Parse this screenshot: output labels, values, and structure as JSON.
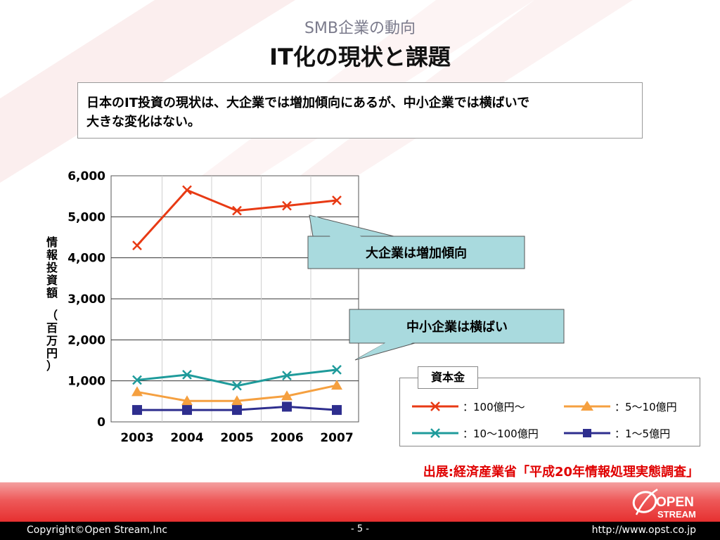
{
  "slide": {
    "subtitle": "SMB企業の動向",
    "title": "IT化の現状と課題",
    "summary_line1": "日本のIT投資の現状は、大企業では増加傾向にあるが、中小企業では横ばいで",
    "summary_line2": "大きな変化はない。",
    "source": "出展:経済産業省「平成20年情報処理実態調査」",
    "callout_large": "大企業は増加傾向",
    "callout_sme": "中小企業は横ばい",
    "legend_title": "資本金",
    "logo_text_top": "OPEN",
    "logo_text_bottom": "STREAM"
  },
  "footer": {
    "copyright": "Copyright©Open Stream,Inc",
    "page": "- 5 -",
    "url": "http://www.opst.co.jp"
  },
  "colors": {
    "accent_red": "#e00000",
    "callout_fill": "#a9dade"
  },
  "chart_data": {
    "type": "line",
    "categories": [
      "2003",
      "2004",
      "2005",
      "2006",
      "2007"
    ],
    "ylabel": "情報投資額（百万円）",
    "ylim": [
      0,
      6000
    ],
    "yticks": [
      0,
      1000,
      2000,
      3000,
      4000,
      5000,
      6000
    ],
    "ytick_labels": [
      "0",
      "1,000",
      "2,000",
      "3,000",
      "4,000",
      "5,000",
      "6,000"
    ],
    "grid": "horizontal",
    "legend": "bottom-right",
    "series": [
      {
        "name": "：100億円〜",
        "color": "#e83a14",
        "marker": "x",
        "values": [
          4300,
          5650,
          5150,
          5270,
          5400
        ]
      },
      {
        "name": "：10〜100億円",
        "color": "#1f9b9b",
        "marker": "x",
        "values": [
          1020,
          1150,
          880,
          1130,
          1270
        ]
      },
      {
        "name": "：5〜10億円",
        "color": "#f5a040",
        "marker": "triangle",
        "values": [
          730,
          510,
          510,
          630,
          890
        ]
      },
      {
        "name": "：1〜5億円",
        "color": "#2e2e8e",
        "marker": "square",
        "values": [
          290,
          290,
          290,
          370,
          290
        ]
      }
    ]
  }
}
